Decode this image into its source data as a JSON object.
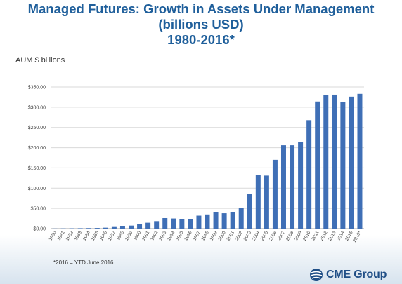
{
  "title_lines": [
    "Managed Futures: Growth in Assets Under Management",
    "(billions USD)",
    "1980-2016*"
  ],
  "ylabel": "AUM  $ billions",
  "footnote": "*2016 = YTD June 2016",
  "logo": {
    "text": "CME Group",
    "icon": "cme-globe-icon"
  },
  "colors": {
    "bar": "#3f6fb6",
    "title": "#1f5f9b",
    "grid": "#d9d9d9"
  },
  "chart_data": {
    "type": "bar",
    "title": "",
    "xlabel": "",
    "ylabel": "AUM  $ billions",
    "ylim": [
      0,
      350
    ],
    "yticks": [
      "$0.00",
      "$50.00",
      "$100.00",
      "$150.00",
      "$200.00",
      "$250.00",
      "$300.00",
      "$350.00"
    ],
    "ytick_values": [
      0,
      50,
      100,
      150,
      200,
      250,
      300,
      350
    ],
    "grid": true,
    "categories": [
      "1980",
      "1981",
      "1982",
      "1983",
      "1984",
      "1985",
      "1986",
      "1987",
      "1988",
      "1989",
      "1990",
      "1991",
      "1992",
      "1993",
      "1994",
      "1995",
      "1996",
      "1997",
      "1998",
      "1999",
      "2000",
      "2001",
      "2002",
      "2003",
      "2004",
      "2005",
      "2006",
      "2007",
      "2008",
      "2009",
      "2010",
      "2011",
      "2012",
      "2013",
      "2014",
      "2015",
      "2016*"
    ],
    "values": [
      0.3,
      0.5,
      0.7,
      1.0,
      1.3,
      1.6,
      2.3,
      4.0,
      5.5,
      7.5,
      10.5,
      14.5,
      18.5,
      26,
      25,
      23,
      23.5,
      32,
      35,
      41,
      38,
      41,
      51,
      85,
      133,
      131,
      170,
      206,
      206,
      214,
      268,
      314,
      330,
      331,
      313,
      326,
      333
    ]
  }
}
